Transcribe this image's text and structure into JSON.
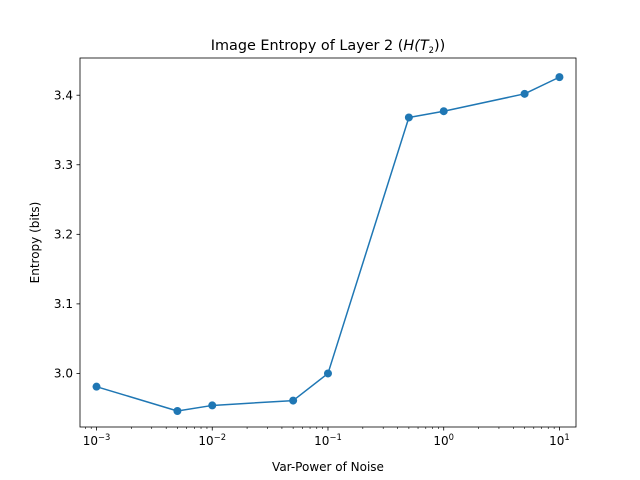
{
  "chart_data": {
    "type": "line",
    "title": "Image Entropy of Layer 2 (H(T₂))",
    "title_parts": {
      "prefix": "Image Entropy of Layer 2 (",
      "math_open": "H(",
      "math_T": "T",
      "math_sub": "2",
      "math_close": "))"
    },
    "xlabel": "Var-Power of Noise",
    "ylabel": "Entropy (bits)",
    "xscale": "log",
    "xlim": [
      0.00072,
      13.9
    ],
    "ylim": [
      2.923,
      3.4535
    ],
    "grid": false,
    "legend": "none",
    "color": "#1f77b4",
    "marker": "circle",
    "x": [
      0.001,
      0.005,
      0.01,
      0.05,
      0.1,
      0.5,
      1,
      5,
      10
    ],
    "series": [
      {
        "values": [
          2.981,
          2.946,
          2.954,
          2.961,
          3.0,
          3.368,
          3.377,
          3.402,
          3.426
        ]
      }
    ],
    "xticks": [
      {
        "value": 0.001,
        "base": "10",
        "exp": "−3"
      },
      {
        "value": 0.01,
        "base": "10",
        "exp": "−2"
      },
      {
        "value": 0.1,
        "base": "10",
        "exp": "−1"
      },
      {
        "value": 1,
        "base": "10",
        "exp": "0"
      },
      {
        "value": 10,
        "base": "10",
        "exp": "1"
      }
    ],
    "yticks": [
      {
        "value": 3.0,
        "label": "3.0"
      },
      {
        "value": 3.1,
        "label": "3.1"
      },
      {
        "value": 3.2,
        "label": "3.2"
      },
      {
        "value": 3.3,
        "label": "3.3"
      },
      {
        "value": 3.4,
        "label": "3.4"
      }
    ]
  }
}
